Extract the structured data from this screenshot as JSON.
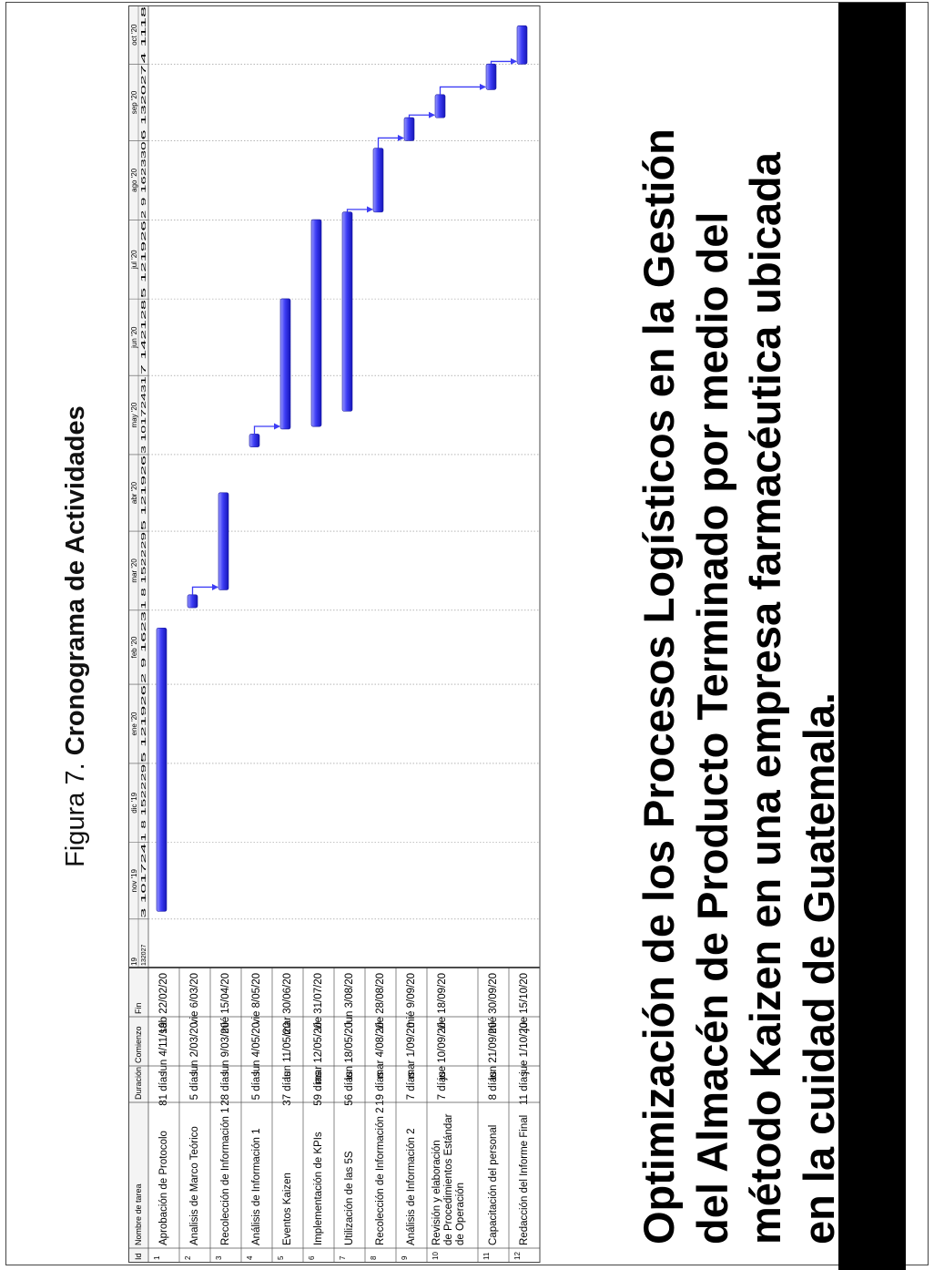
{
  "caption": {
    "prefix": "Figura 7.",
    "title": "Cronograma de Actividades"
  },
  "table_headers": {
    "id": "Id",
    "name": "Nombre de tarea",
    "duration": "Duración",
    "start": "Comienzo",
    "end": "Fin"
  },
  "timeline": {
    "months": [
      "nov '19",
      "dic '19",
      "ene '20",
      "feb '20",
      "mar '20",
      "abr '20",
      "may '20",
      "jun '20",
      "jul '20",
      "ago '20",
      "sep '20",
      "oct '20"
    ],
    "months_prefix": "19",
    "days_prefix": "132027",
    "day_ticks": [
      "3 101724",
      "1 8 152229",
      "5 121926",
      "2 9 1623",
      "1 8 152229",
      "5 121926",
      "3 10172431",
      "7 142128",
      "5 121926",
      "2 9 162330",
      "6 132027",
      "4 1118"
    ],
    "bar_color": "#3d3df5"
  },
  "chart_data": {
    "type": "gantt",
    "x_axis": "date",
    "xlim": [
      "2019-10-13",
      "2020-10-24"
    ],
    "tasks": [
      {
        "id": "1",
        "name": "Aprobación de Protocolo",
        "duration": "81 días",
        "start_label": "lun 4/11/19",
        "end_label": "sáb 22/02/20",
        "start": "2019-11-04",
        "end": "2020-02-22"
      },
      {
        "id": "2",
        "name": "Analisis de Marco Teórico",
        "duration": "5 días",
        "start_label": "lun 2/03/20",
        "end_label": "vie 6/03/20",
        "start": "2020-03-02",
        "end": "2020-03-06"
      },
      {
        "id": "3",
        "name": "Recolección de Información 1",
        "duration": "28 días",
        "start_label": "lun 9/03/20",
        "end_label": "mié 15/04/20",
        "start": "2020-03-09",
        "end": "2020-04-15"
      },
      {
        "id": "4",
        "name": "Análisis de Información 1",
        "duration": "5 días",
        "start_label": "lun 4/05/20",
        "end_label": "vie 8/05/20",
        "start": "2020-05-04",
        "end": "2020-05-08"
      },
      {
        "id": "5",
        "name": "Eventos Kaizen",
        "duration": "37 días",
        "start_label": "lun 11/05/20",
        "end_label": "mar 30/06/20",
        "start": "2020-05-11",
        "end": "2020-06-30"
      },
      {
        "id": "6",
        "name": "Implementación de KPIs",
        "duration": "59 días",
        "start_label": "mar 12/05/20",
        "end_label": "vie 31/07/20",
        "start": "2020-05-12",
        "end": "2020-07-31"
      },
      {
        "id": "7",
        "name": "Utilización de las 5S",
        "duration": "56 días",
        "start_label": "lun 18/05/20",
        "end_label": "lun 3/08/20",
        "start": "2020-05-18",
        "end": "2020-08-03"
      },
      {
        "id": "8",
        "name": "Recolección de Información 2",
        "duration": "19 días",
        "start_label": "mar 4/08/20",
        "end_label": "vie 28/08/20",
        "start": "2020-08-04",
        "end": "2020-08-28"
      },
      {
        "id": "9",
        "name": "Análisis de Información 2",
        "duration": "7 días",
        "start_label": "mar 1/09/20",
        "end_label": "mié 9/09/20",
        "start": "2020-09-01",
        "end": "2020-09-09"
      },
      {
        "id": "10",
        "name": "Revisión y elaboración de Procedimientos Estándar de Operación",
        "duration": "7 días",
        "start_label": "jue 10/09/20",
        "end_label": "vie 18/09/20",
        "start": "2020-09-10",
        "end": "2020-09-18"
      },
      {
        "id": "11",
        "name": "Capacitación del personal",
        "duration": "8 días",
        "start_label": "lun 21/09/20",
        "end_label": "mié 30/09/20",
        "start": "2020-09-21",
        "end": "2020-09-30"
      },
      {
        "id": "12",
        "name": "Redacción del Informe Final",
        "duration": "11 días",
        "start_label": "jue 1/10/20",
        "end_label": "jue 15/10/20",
        "start": "2020-10-01",
        "end": "2020-10-15"
      }
    ],
    "dependencies": [
      [
        2,
        3
      ],
      [
        4,
        5
      ],
      [
        7,
        8
      ],
      [
        8,
        9
      ],
      [
        9,
        10
      ],
      [
        10,
        11
      ],
      [
        11,
        12
      ]
    ]
  },
  "document_title": "Optimización de los Procesos Logísticos en la Gestión del Almacén de Producto Terminado por medio del método Kaizen en una empresa farmacéutica ubicada en la cuidad de Guatemala."
}
